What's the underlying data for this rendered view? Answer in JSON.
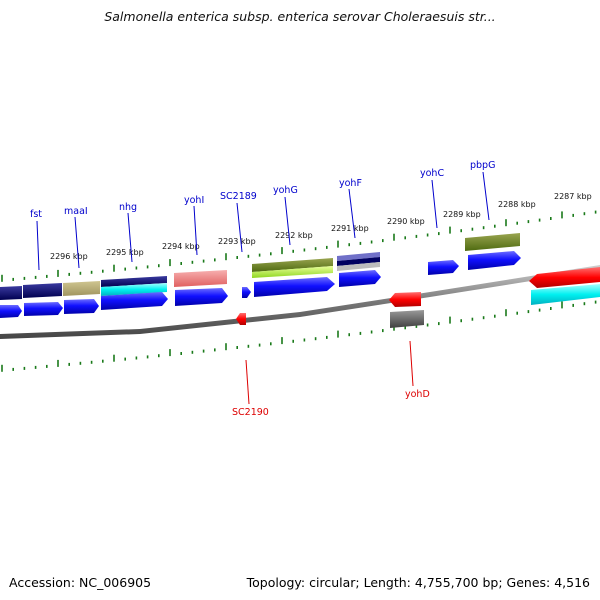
{
  "title": "Salmonella enterica subsp. enterica serovar Choleraesuis str...",
  "footer": {
    "accession": "Accession: NC_006905",
    "summary": "Topology: circular; Length: 4,755,700 bp; Genes: 4,516"
  },
  "colors": {
    "forward_label": "#0000cc",
    "reverse_label": "#dd0000",
    "tick": "#1a7a1a",
    "backbone": "#808080"
  },
  "ruler_top_labels": [
    "2296 kbp",
    "2295 kbp",
    "2294 kbp",
    "2293 kbp",
    "2292 kbp",
    "2291 kbp",
    "2290 kbp",
    "2289 kbp",
    "2288 kbp",
    "2287 kbp"
  ],
  "forward_gene_labels": [
    "fst",
    "maaI",
    "nhg",
    "yohI",
    "SC2189",
    "yohG",
    "yohF",
    "yohC",
    "pbpG"
  ],
  "reverse_gene_labels": [
    "SC2190",
    "yohD"
  ]
}
